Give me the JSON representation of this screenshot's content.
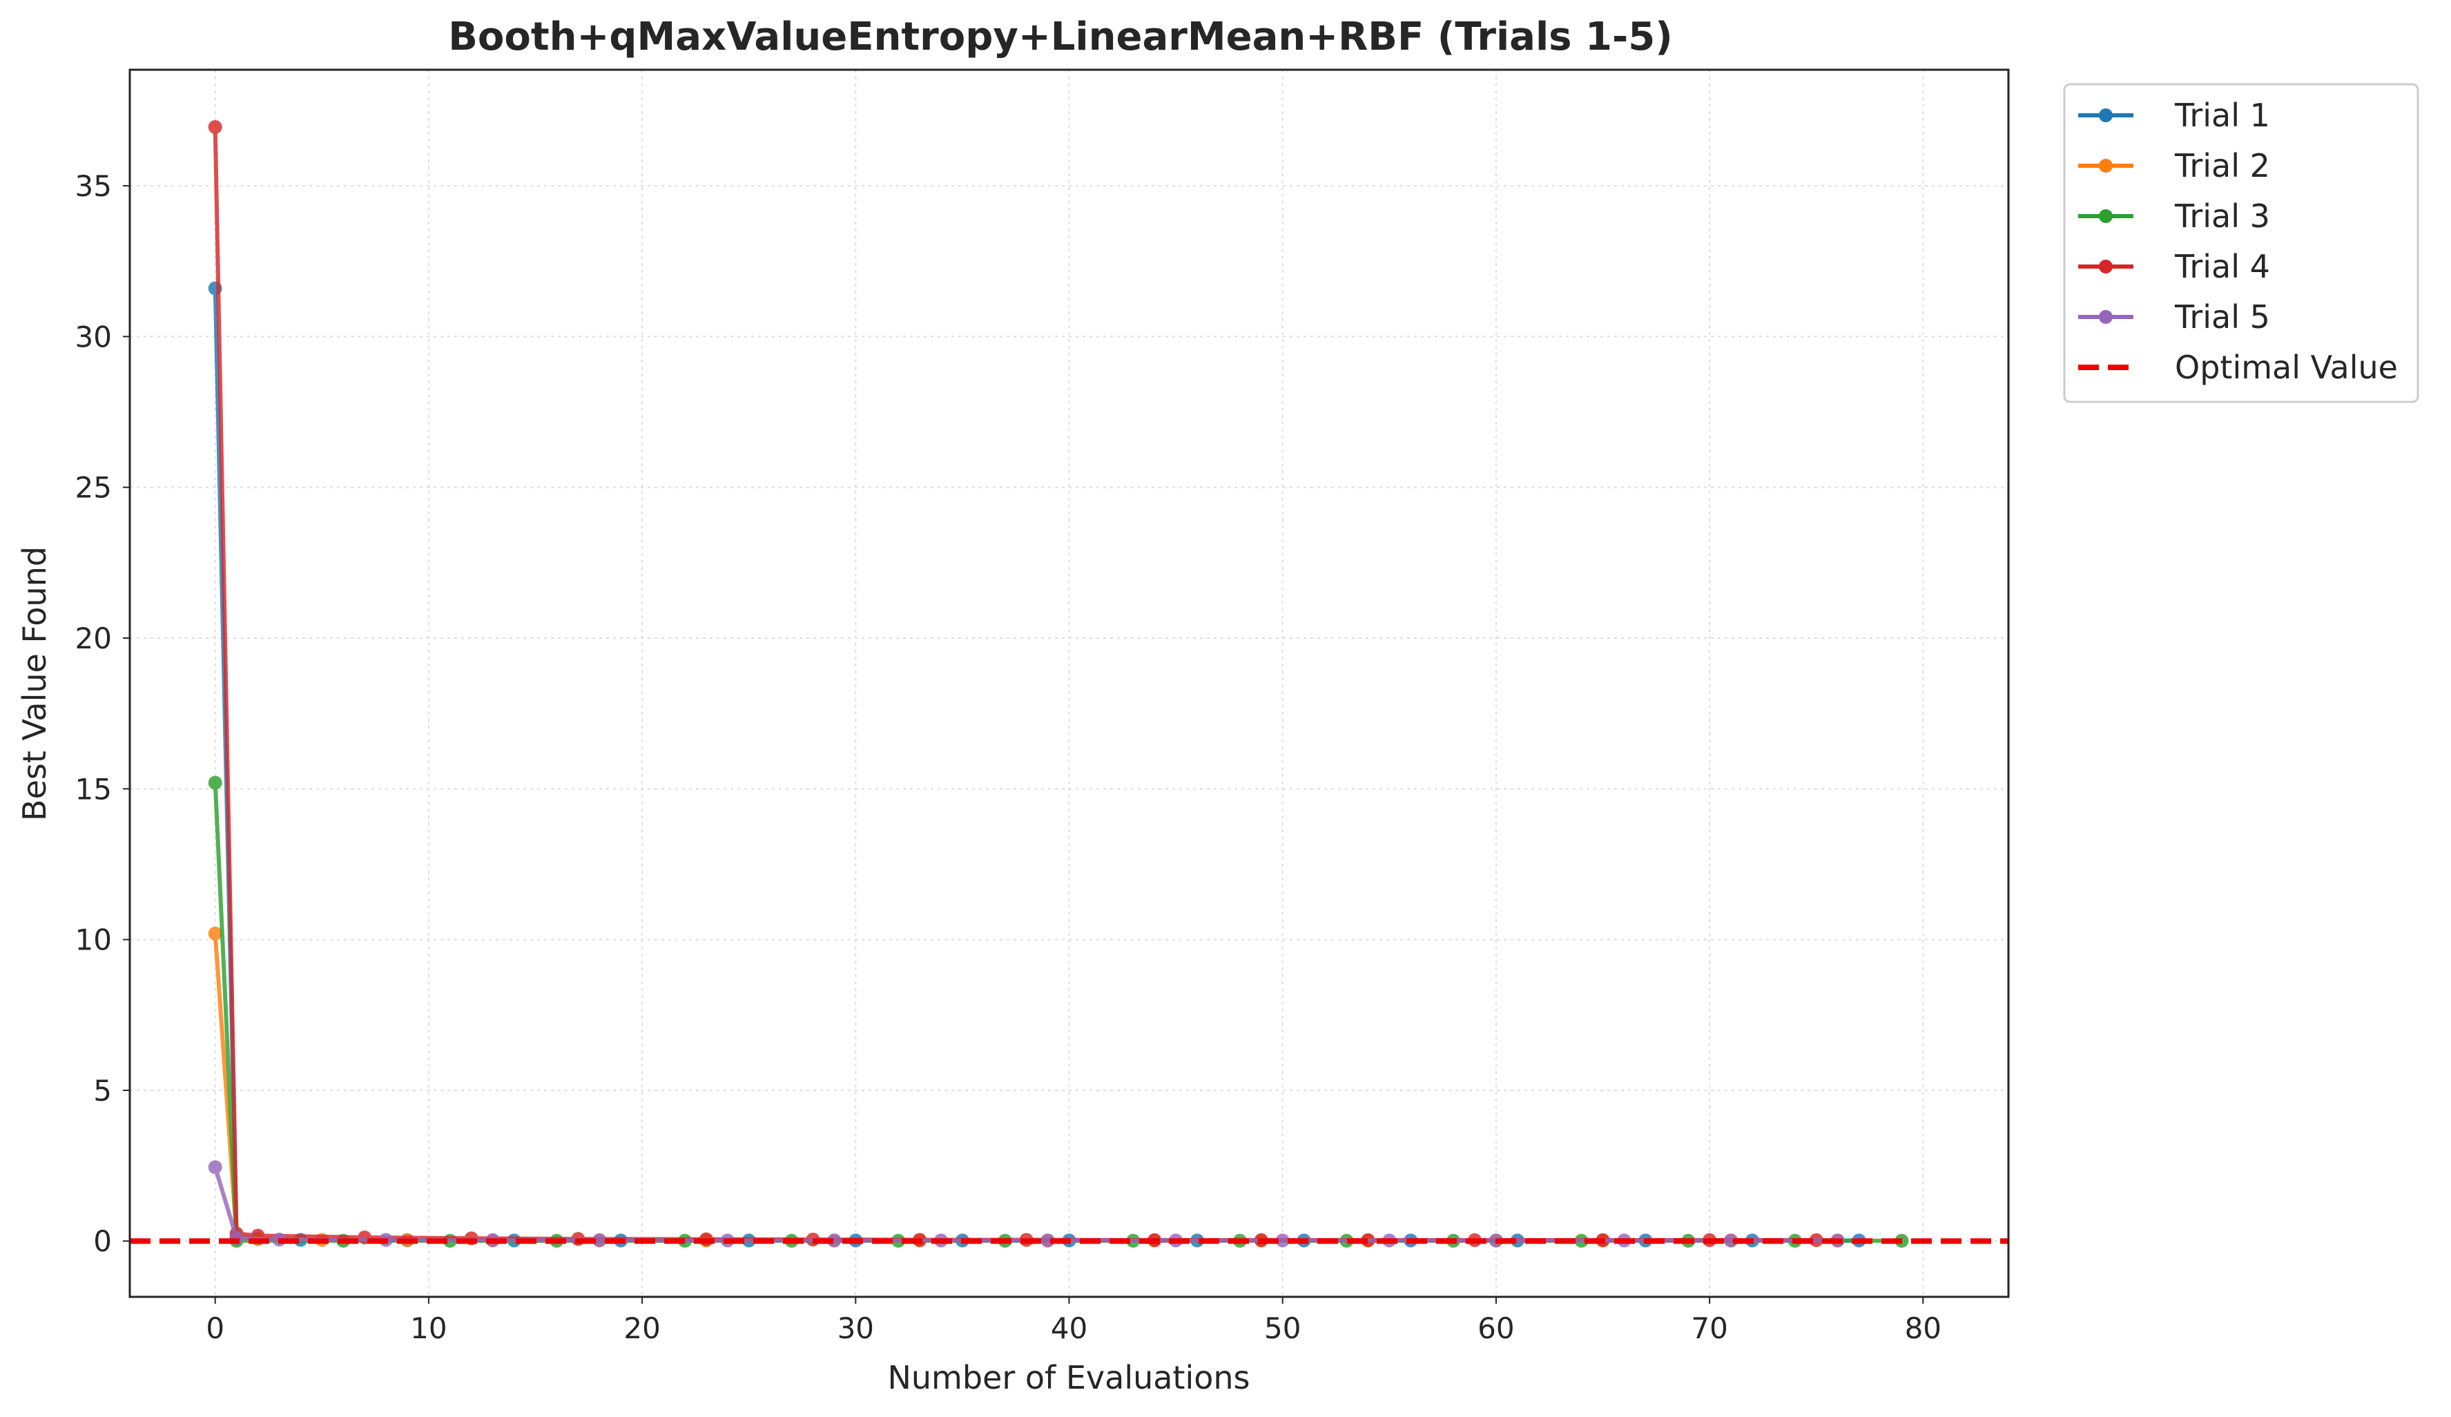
{
  "chart_data": {
    "type": "line",
    "title": "Booth+qMaxValueEntropy+LinearMean+RBF (Trials 1-5)",
    "xlabel": "Number of Evaluations",
    "ylabel": "Best Value Found",
    "xlim": [
      -4,
      84
    ],
    "ylim": [
      -1.85,
      38.85
    ],
    "xticks": [
      0,
      10,
      20,
      30,
      40,
      50,
      60,
      70,
      80
    ],
    "yticks": [
      0,
      5,
      10,
      15,
      20,
      25,
      30,
      35
    ],
    "grid": true,
    "legend_position": "outside-top-right",
    "series": [
      {
        "name": "Trial 1",
        "color": "#1f77b4",
        "x": [
          0,
          1,
          2,
          4,
          9,
          14,
          19,
          25,
          30,
          35,
          40,
          46,
          51,
          56,
          61,
          67,
          72,
          77
        ],
        "y": [
          31.6,
          0.15,
          0.08,
          0.04,
          0.03,
          0.02,
          0.02,
          0.02,
          0.02,
          0.02,
          0.02,
          0.02,
          0.02,
          0.02,
          0.02,
          0.02,
          0.02,
          0.02
        ]
      },
      {
        "name": "Trial 2",
        "color": "#ff7f0e",
        "x": [
          0,
          1,
          2,
          5,
          9,
          13,
          18,
          23,
          29,
          33,
          39,
          44,
          49,
          54,
          60,
          65,
          71,
          76
        ],
        "y": [
          10.2,
          0.12,
          0.07,
          0.04,
          0.03,
          0.02,
          0.02,
          0.02,
          0.02,
          0.02,
          0.02,
          0.02,
          0.02,
          0.02,
          0.02,
          0.02,
          0.02,
          0.02
        ]
      },
      {
        "name": "Trial 3",
        "color": "#2ca02c",
        "x": [
          0,
          1,
          6,
          11,
          16,
          22,
          27,
          32,
          37,
          43,
          48,
          53,
          58,
          64,
          69,
          74,
          79
        ],
        "y": [
          15.2,
          0.01,
          0.01,
          0.01,
          0.01,
          0.01,
          0.01,
          0.01,
          0.01,
          0.01,
          0.01,
          0.01,
          0.01,
          0.01,
          0.01,
          0.01,
          0.01
        ]
      },
      {
        "name": "Trial 4",
        "color": "#d62728",
        "x": [
          0,
          1,
          2,
          7,
          12,
          17,
          23,
          28,
          33,
          38,
          44,
          49,
          54,
          59,
          65,
          70,
          75
        ],
        "y": [
          36.95,
          0.25,
          0.18,
          0.12,
          0.09,
          0.07,
          0.06,
          0.05,
          0.04,
          0.04,
          0.03,
          0.03,
          0.03,
          0.03,
          0.03,
          0.03,
          0.03
        ]
      },
      {
        "name": "Trial 5",
        "color": "#9467bd",
        "x": [
          0,
          1,
          3,
          8,
          13,
          18,
          24,
          29,
          34,
          39,
          45,
          50,
          55,
          60,
          66,
          71,
          76
        ],
        "y": [
          2.45,
          0.1,
          0.05,
          0.04,
          0.03,
          0.03,
          0.02,
          0.02,
          0.02,
          0.02,
          0.02,
          0.02,
          0.02,
          0.02,
          0.02,
          0.02,
          0.02
        ]
      }
    ],
    "reference_line": {
      "name": "Optimal Value",
      "y": 0,
      "color": "#ee0000",
      "style": "dashed"
    }
  }
}
